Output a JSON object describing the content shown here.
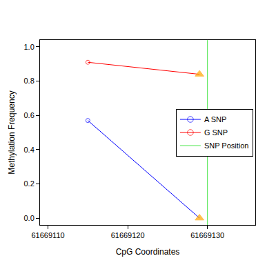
{
  "chart_data": {
    "type": "line",
    "x_label": "CpG Coordinates",
    "y_label": "Methylation Frequency",
    "x": [
      61669115,
      61669129
    ],
    "series": [
      {
        "name": "A SNP",
        "color": "#0000FF",
        "values": [
          0.57,
          0.0
        ],
        "marker": [
          "circle-open",
          "triangle-up"
        ],
        "colors": [
          "#0000FF",
          "#FFA500"
        ]
      },
      {
        "name": "G SNP",
        "color": "#FF0000",
        "values": [
          0.91,
          0.84
        ],
        "marker": [
          "circle-open",
          "triangle-up"
        ],
        "colors": [
          "#FF0000",
          "#FFA500"
        ]
      },
      {
        "name": "SNP Position",
        "color": "#4CE64C",
        "type": "vline",
        "x": [
          61669130
        ]
      }
    ],
    "xlim": [
      61669109,
      61669136
    ],
    "xticks": [
      61669110,
      61669120,
      61669130
    ],
    "ylim": [
      -0.04,
      1.04
    ],
    "yticks": [
      {
        "value": 0,
        "label": "0.0"
      },
      0.2,
      0.4,
      0.6,
      0.8,
      {
        "value": 1,
        "label": "1.0"
      }
    ],
    "grid": false,
    "legend": "right"
  }
}
